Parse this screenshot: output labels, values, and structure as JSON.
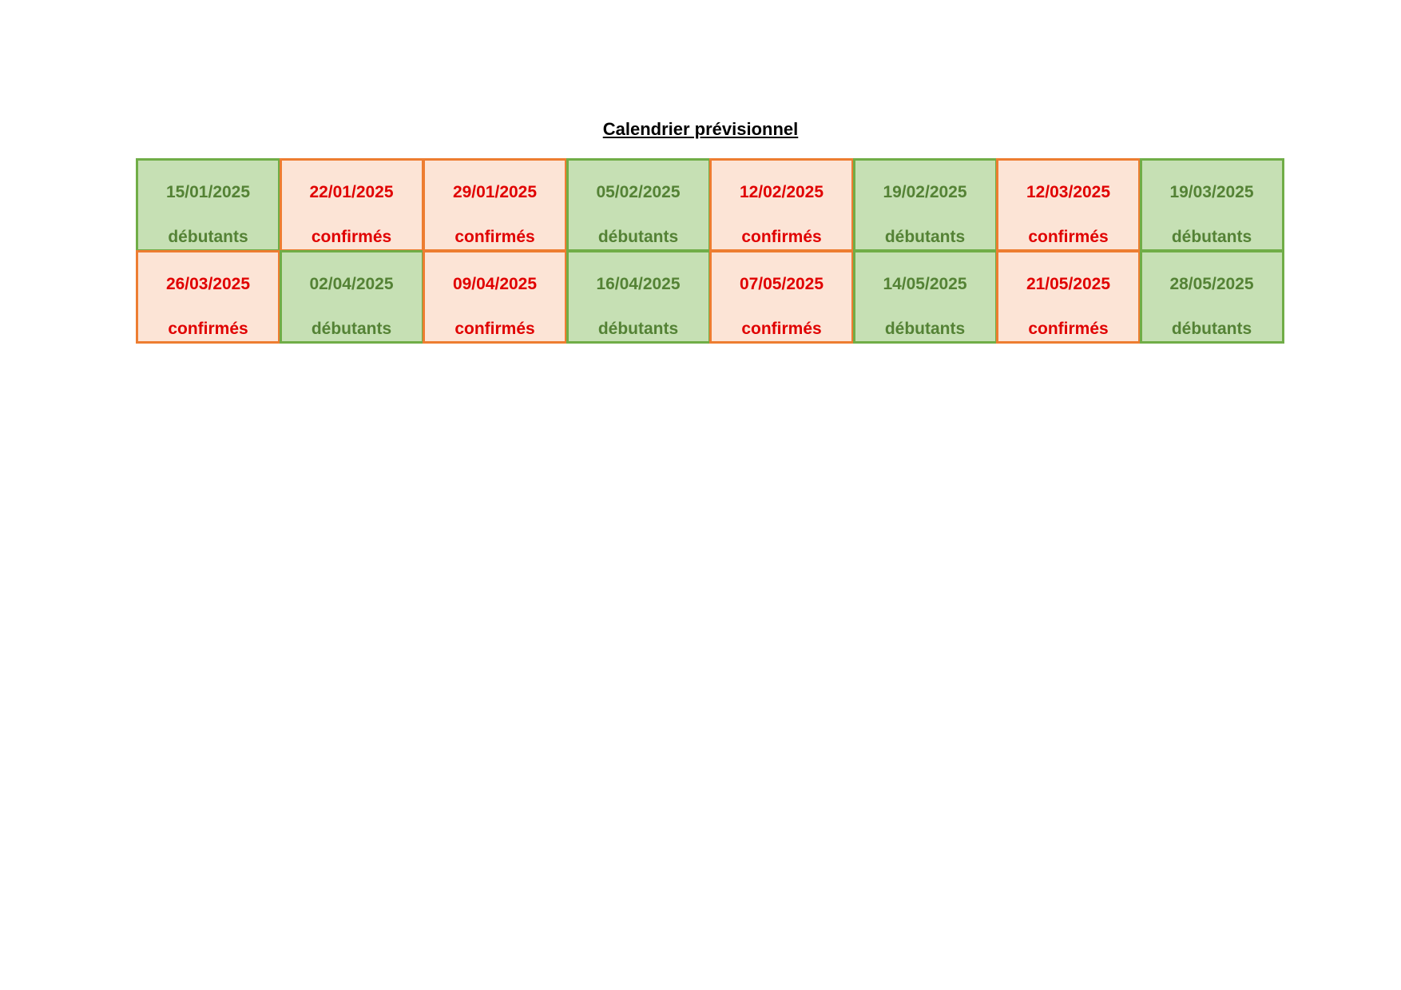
{
  "header": {
    "title": "Calendrier prévisionnel"
  },
  "table": {
    "rows": [
      [
        {
          "date": "15/01/2025",
          "level": "débutants",
          "color": "#548235",
          "background": "#c6e0b4",
          "border": "#70ad47"
        },
        {
          "date": "22/01/2025",
          "level": "confirmés",
          "color": "#e00000",
          "background": "#fce4d6",
          "border": "#ed7d31"
        },
        {
          "date": "29/01/2025",
          "level": "confirmés",
          "color": "#e00000",
          "background": "#fce4d6",
          "border": "#ed7d31"
        },
        {
          "date": "05/02/2025",
          "level": "débutants",
          "color": "#548235",
          "background": "#c6e0b4",
          "border": "#70ad47"
        },
        {
          "date": "12/02/2025",
          "level": "confirmés",
          "color": "#e00000",
          "background": "#fce4d6",
          "border": "#ed7d31"
        },
        {
          "date": "19/02/2025",
          "level": "débutants",
          "color": "#548235",
          "background": "#c6e0b4",
          "border": "#70ad47"
        },
        {
          "date": "12/03/2025",
          "level": "confirmés",
          "color": "#e00000",
          "background": "#fce4d6",
          "border": "#ed7d31"
        },
        {
          "date": "19/03/2025",
          "level": "débutants",
          "color": "#548235",
          "background": "#c6e0b4",
          "border": "#70ad47"
        }
      ],
      [
        {
          "date": "26/03/2025",
          "level": "confirmés",
          "color": "#e00000",
          "background": "#fce4d6",
          "border": "#ed7d31"
        },
        {
          "date": "02/04/2025",
          "level": "débutants",
          "color": "#548235",
          "background": "#c6e0b4",
          "border": "#70ad47"
        },
        {
          "date": "09/04/2025",
          "level": "confirmés",
          "color": "#e00000",
          "background": "#fce4d6",
          "border": "#ed7d31"
        },
        {
          "date": "16/04/2025",
          "level": "débutants",
          "color": "#548235",
          "background": "#c6e0b4",
          "border": "#70ad47"
        },
        {
          "date": "07/05/2025",
          "level": "confirmés",
          "color": "#e00000",
          "background": "#fce4d6",
          "border": "#ed7d31"
        },
        {
          "date": "14/05/2025",
          "level": "débutants",
          "color": "#548235",
          "background": "#c6e0b4",
          "border": "#70ad47"
        },
        {
          "date": "21/05/2025",
          "level": "confirmés",
          "color": "#e00000",
          "background": "#fce4d6",
          "border": "#ed7d31"
        },
        {
          "date": "28/05/2025",
          "level": "débutants",
          "color": "#548235",
          "background": "#c6e0b4",
          "border": "#70ad47"
        }
      ]
    ]
  }
}
